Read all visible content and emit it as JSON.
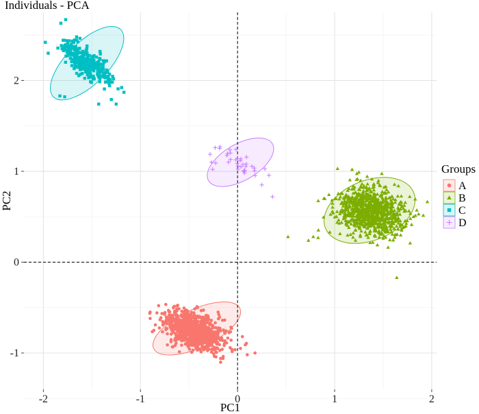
{
  "chart_data": {
    "type": "scatter",
    "title": "Individuals - PCA",
    "xlabel": "PC1",
    "ylabel": "PC2",
    "xlim": [
      -2.2,
      2.05
    ],
    "ylim": [
      -1.4,
      2.75
    ],
    "xticks": [
      -2,
      -1,
      0,
      1,
      2
    ],
    "xtick_labels": [
      "-2",
      "-1",
      "0",
      "1",
      "2"
    ],
    "yticks": [
      -1,
      0,
      1,
      2
    ],
    "ytick_labels": [
      "-1",
      "0",
      "1",
      "2"
    ],
    "grid": true,
    "reference_lines": {
      "x": 0,
      "y": 0,
      "style": "dashed"
    },
    "legend": {
      "title": "Groups",
      "position": "right"
    },
    "series": [
      {
        "name": "A",
        "marker": "circle",
        "color": "#F8766D",
        "n": 900,
        "center": [
          -0.45,
          -0.75
        ],
        "spread": [
          0.16,
          0.09
        ],
        "rotation_deg": -24,
        "ellipse": {
          "center": [
            -0.42,
            -0.73
          ],
          "radii": [
            0.49,
            0.21
          ],
          "rotation_deg": -25
        },
        "outliers": [
          [
            -0.9,
            -0.62
          ],
          [
            -0.9,
            -0.55
          ],
          [
            0.05,
            -0.82
          ],
          [
            0.1,
            -1.02
          ],
          [
            0.18,
            -1.0
          ],
          [
            -0.15,
            -1.06
          ],
          [
            0.08,
            -0.91
          ],
          [
            -0.62,
            -0.64
          ],
          [
            0.03,
            -0.95
          ],
          [
            -0.2,
            -0.55
          ]
        ]
      },
      {
        "name": "B",
        "marker": "triangle",
        "color": "#7CAE00",
        "n": 900,
        "center": [
          1.38,
          0.56
        ],
        "spread": [
          0.17,
          0.13
        ],
        "rotation_deg": -20,
        "ellipse": {
          "center": [
            1.36,
            0.57
          ],
          "radii": [
            0.49,
            0.33
          ],
          "rotation_deg": -22
        },
        "outliers": [
          [
            0.52,
            0.28
          ],
          [
            0.73,
            0.24
          ],
          [
            0.78,
            0.28
          ],
          [
            0.83,
            0.27
          ],
          [
            1.64,
            -0.17
          ],
          [
            1.03,
            1.03
          ],
          [
            1.18,
            1.02
          ],
          [
            1.25,
            0.99
          ],
          [
            1.78,
            0.48
          ],
          [
            0.95,
            0.33
          ]
        ]
      },
      {
        "name": "C",
        "marker": "square",
        "color": "#00BFC4",
        "n": 330,
        "center": [
          -1.55,
          2.2
        ],
        "spread": [
          0.15,
          0.06
        ],
        "rotation_deg": -42,
        "ellipse": {
          "center": [
            -1.55,
            2.19
          ],
          "radii": [
            0.49,
            0.23
          ],
          "rotation_deg": -45
        },
        "outliers": [
          [
            -1.98,
            2.42
          ],
          [
            -1.95,
            2.3
          ],
          [
            -1.77,
            2.67
          ],
          [
            -1.82,
            2.63
          ],
          [
            -1.25,
            1.74
          ],
          [
            -1.17,
            1.87
          ],
          [
            -1.78,
            1.82
          ],
          [
            -1.83,
            1.83
          ],
          [
            -1.43,
            1.74
          ],
          [
            -1.3,
            1.79
          ]
        ]
      },
      {
        "name": "D",
        "marker": "cross",
        "color": "#C77CFF",
        "n": 34,
        "center": [
          0.0,
          1.1
        ],
        "spread": [
          0.14,
          0.08
        ],
        "rotation_deg": -30,
        "ellipse": {
          "center": [
            0.03,
            1.1
          ],
          "radii": [
            0.38,
            0.2
          ],
          "rotation_deg": -30
        },
        "outliers": [
          [
            0.36,
            0.72
          ],
          [
            -0.23,
            1.26
          ],
          [
            -0.18,
            1.27
          ],
          [
            0.25,
            0.85
          ]
        ]
      }
    ]
  }
}
